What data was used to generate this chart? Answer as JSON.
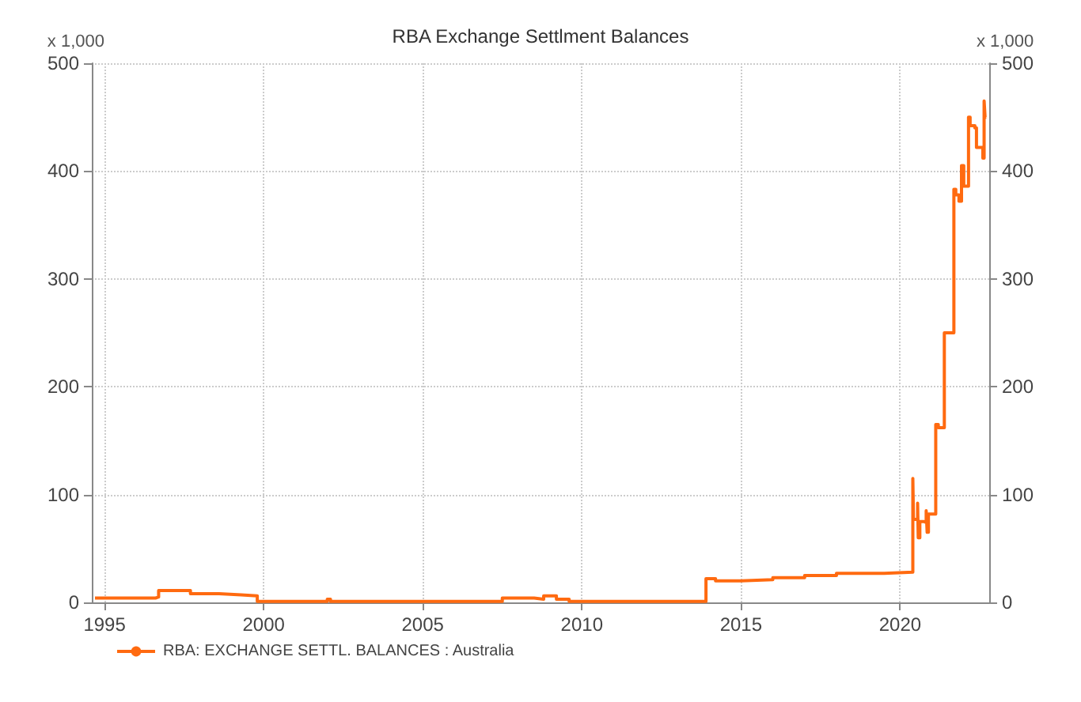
{
  "chart_data": {
    "type": "step",
    "title": "RBA Exchange Settlment Balances",
    "ylabel": "x 1,000",
    "y2label": "x 1,000",
    "x": [
      1994.7,
      1996.6,
      1996.7,
      1997.7,
      1998.6,
      1999.3,
      1999.8,
      2002,
      2002.1,
      2007.5,
      2008.5,
      2008.8,
      2009.2,
      2009.6,
      2013.9,
      2014.2,
      2015,
      2016,
      2017,
      2018,
      2019,
      2019.5,
      2020.4,
      2020.42,
      2020.55,
      2020.57,
      2020.62,
      2020.75,
      2020.82,
      2020.85,
      2020.89,
      2021.12,
      2021.2,
      2021.39,
      2021.69,
      2021.75,
      2021.85,
      2021.93,
      2022,
      2022.15,
      2022.2,
      2022.35,
      2022.4,
      2022.55,
      2022.6,
      2022.64,
      2022.67,
      2022.71
    ],
    "series": [
      {
        "name": "RBA: EXCHANGE SETTL. BALANCES : Australia",
        "color": "#ff6a10",
        "values": [
          4,
          5,
          11,
          8,
          7,
          6,
          1,
          3,
          1,
          4,
          3,
          6,
          3,
          1,
          22,
          20,
          21,
          23,
          25,
          27,
          27,
          28,
          115,
          77,
          92,
          60,
          75,
          74,
          85,
          65,
          82,
          165,
          162,
          250,
          383,
          378,
          372,
          405,
          386,
          450,
          442,
          440,
          422,
          422,
          412,
          465,
          450,
          450
        ]
      }
    ],
    "xlim": [
      1994.6,
      2022.8
    ],
    "xticks": [
      1995,
      2000,
      2005,
      2010,
      2015,
      2020
    ],
    "ylim": [
      0,
      500
    ],
    "yticks": [
      0,
      100,
      200,
      300,
      400,
      500
    ],
    "y2lim": [
      0,
      500
    ],
    "y2ticks": [
      0,
      100,
      200,
      300,
      400,
      500
    ],
    "grid": true,
    "legend": "bottom left",
    "marker": "none",
    "line_style": "solid"
  }
}
